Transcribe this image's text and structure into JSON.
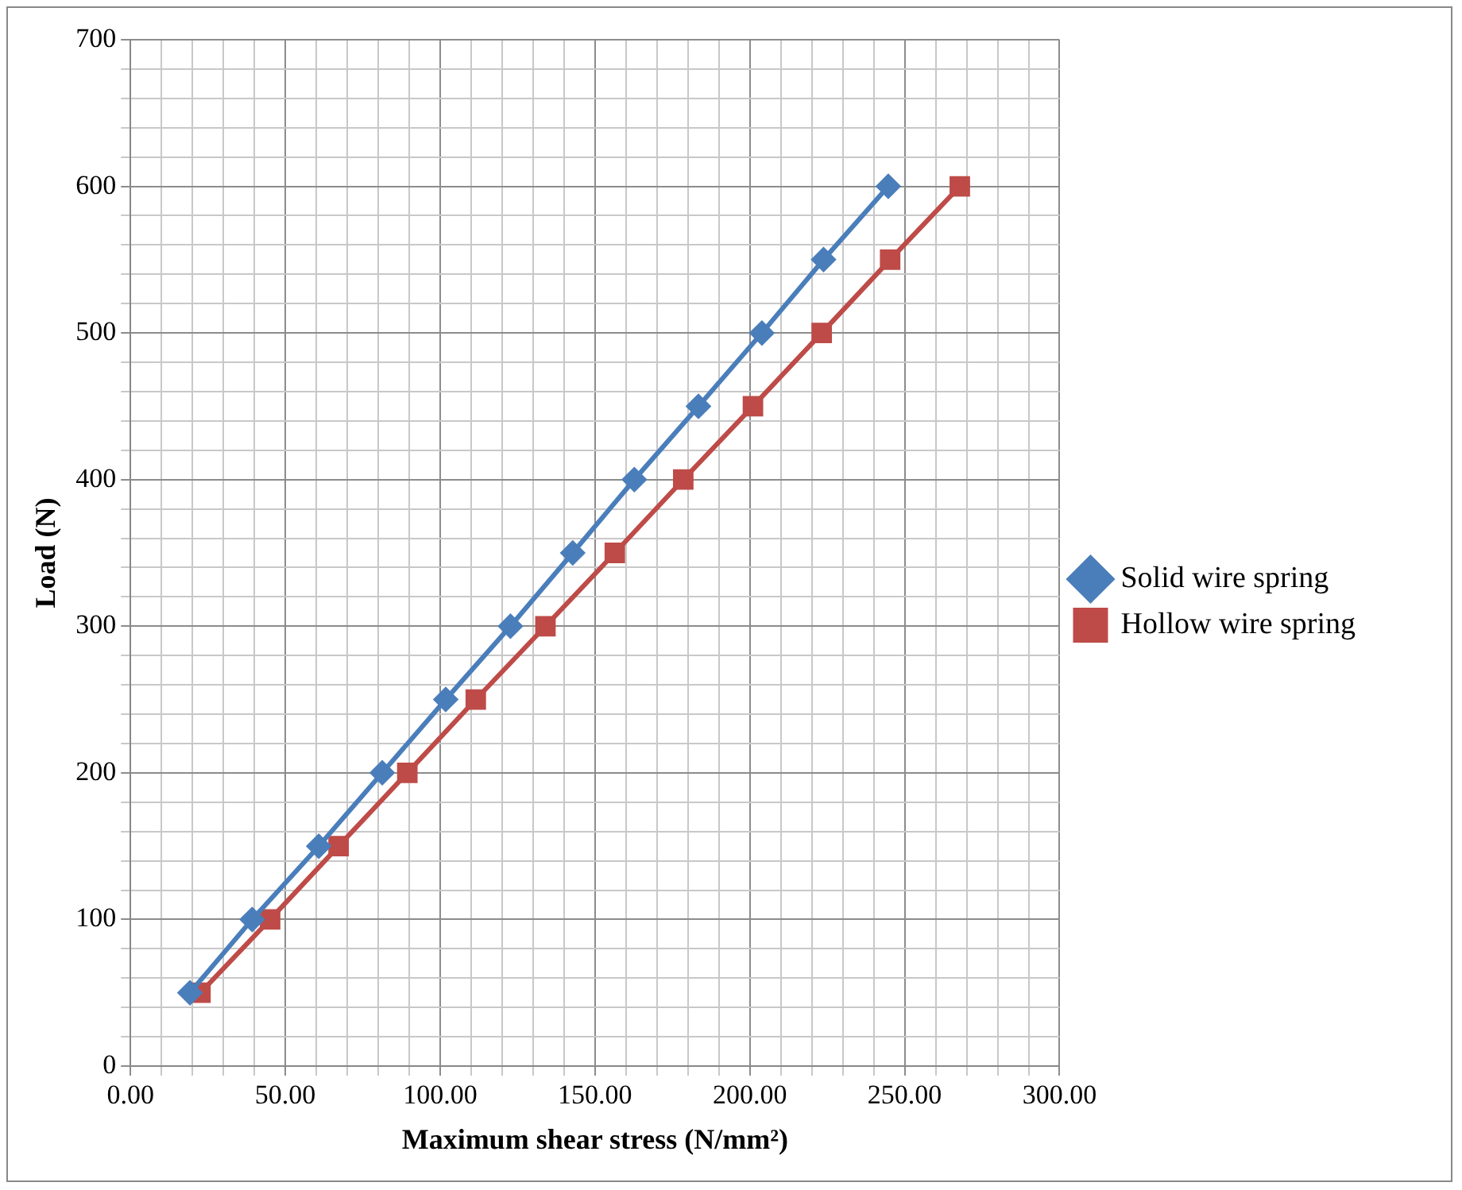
{
  "chart_data": {
    "type": "line",
    "xlabel": "Maximum shear stress (N/mm²)",
    "ylabel": "Load (N)",
    "xlim": [
      0,
      300
    ],
    "xticks": [
      {
        "value": 0,
        "label": "0.00"
      },
      {
        "value": 50,
        "label": "50.00"
      },
      {
        "value": 100,
        "label": "100.00"
      },
      {
        "value": 150,
        "label": "150.00"
      },
      {
        "value": 200,
        "label": "200.00"
      },
      {
        "value": 250,
        "label": "250.00"
      },
      {
        "value": 300,
        "label": "300.00"
      }
    ],
    "ylim": [
      0,
      700
    ],
    "yticks": [
      0,
      100,
      200,
      300,
      400,
      500,
      600,
      700
    ],
    "grid": true,
    "legend": "right",
    "series": [
      {
        "name": "Solid wire spring",
        "color": "#4a7ebb",
        "marker": "diamond",
        "x": [
          19.2,
          39.3,
          60.8,
          81.3,
          101.8,
          122.7,
          142.8,
          162.7,
          183.4,
          203.9,
          223.8,
          244.7
        ],
        "values": [
          50,
          100,
          150,
          200,
          250,
          300,
          350,
          400,
          450,
          500,
          550,
          600
        ]
      },
      {
        "name": "Hollow wire spring",
        "color": "#be4b48",
        "marker": "square",
        "x": [
          22.6,
          45.1,
          67.2,
          89.4,
          111.5,
          134,
          156.4,
          178.5,
          201,
          223.2,
          245.3,
          267.8
        ],
        "values": [
          50,
          100,
          150,
          200,
          250,
          300,
          350,
          400,
          450,
          500,
          550,
          600
        ]
      }
    ]
  }
}
